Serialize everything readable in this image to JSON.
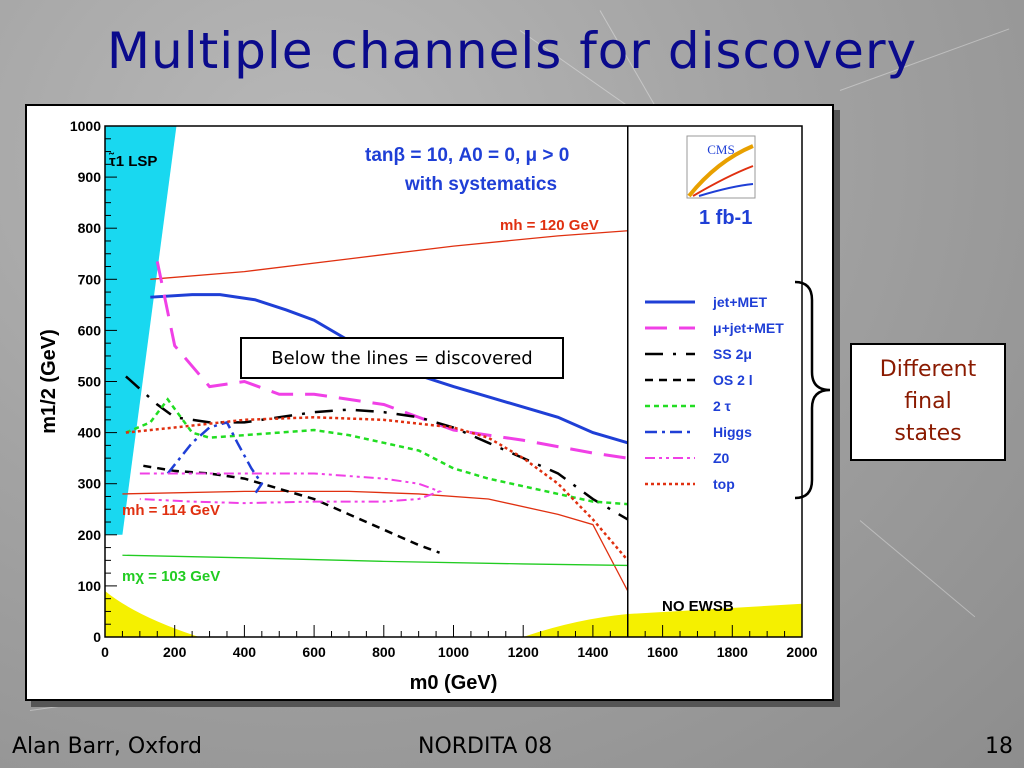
{
  "slide": {
    "title": "Multiple channels for discovery",
    "callout": "Below the lines = discovered",
    "states_box": [
      "Different",
      "final",
      "states"
    ],
    "footer_left": "Alan Barr, Oxford",
    "footer_center": "NORDITA 08",
    "footer_right": "18"
  },
  "chart_data": {
    "type": "line",
    "xlabel": "m0 (GeV)",
    "ylabel": "m1/2 (GeV)",
    "xlim": [
      0,
      2000
    ],
    "ylim": [
      0,
      1000
    ],
    "xticks": [
      "0",
      "200",
      "400",
      "600",
      "800",
      "1000",
      "1200",
      "1400",
      "1600",
      "1800",
      "2000"
    ],
    "yticks": [
      "0",
      "100",
      "200",
      "300",
      "400",
      "500",
      "600",
      "700",
      "800",
      "900",
      "1000"
    ],
    "annotations": {
      "params_line1": "tanβ = 10, A0 = 0, μ > 0",
      "params_line2": "with systematics",
      "lsp_label": "τ̃1 LSP",
      "mh120_label": "mh = 120 GeV",
      "mh114_label": "mh = 114 GeV",
      "mchi_label": "mχ = 103 GeV",
      "noewsb_label": "NO EWSB",
      "lumi_label": "1 fb-1",
      "cms_logo": "CMS"
    },
    "legend_position": "right",
    "series": [
      {
        "name": "jet+MET",
        "color": "#1f3fd6",
        "dash": "solid",
        "width": 3,
        "x": [
          130,
          250,
          330,
          430,
          520,
          600,
          700,
          760,
          820,
          1000,
          1100,
          1300,
          1400,
          1500
        ],
        "y": [
          665,
          670,
          670,
          660,
          640,
          620,
          580,
          555,
          530,
          490,
          470,
          430,
          400,
          380
        ]
      },
      {
        "name": "μ+jet+MET",
        "color": "#f040e6",
        "dash": "22 12",
        "width": 3,
        "x": [
          150,
          200,
          300,
          400,
          500,
          600,
          700,
          800,
          900,
          1000,
          1200,
          1400,
          1500
        ],
        "y": [
          735,
          570,
          490,
          500,
          475,
          475,
          465,
          455,
          430,
          405,
          385,
          360,
          350
        ]
      },
      {
        "name": "SS 2μ",
        "color": "#000000",
        "dash": "18 10 3 10",
        "width": 2.5,
        "x": [
          60,
          150,
          200,
          300,
          400,
          500,
          600,
          700,
          800,
          900,
          1000,
          1100,
          1200,
          1300,
          1400,
          1500
        ],
        "y": [
          510,
          455,
          430,
          420,
          420,
          430,
          440,
          445,
          440,
          430,
          410,
          380,
          350,
          320,
          270,
          230
        ]
      },
      {
        "name": "OS 2 l",
        "color": "#000000",
        "dash": "8 6",
        "width": 2.5,
        "x": [
          110,
          200,
          300,
          400,
          500,
          600,
          700,
          800,
          900,
          960
        ],
        "y": [
          335,
          325,
          320,
          310,
          290,
          270,
          240,
          210,
          180,
          165
        ]
      },
      {
        "name": "2 τ",
        "color": "#22dd22",
        "dash": "5 4",
        "width": 2.5,
        "x": [
          60,
          130,
          180,
          250,
          300,
          400,
          500,
          600,
          700,
          800,
          900,
          1000,
          1100,
          1200,
          1300,
          1400,
          1500
        ],
        "y": [
          400,
          420,
          465,
          400,
          390,
          395,
          400,
          405,
          395,
          380,
          365,
          330,
          310,
          295,
          280,
          265,
          260
        ]
      },
      {
        "name": "Higgs",
        "color": "#1f3fd6",
        "dash": "12 5 3 5",
        "width": 2.5,
        "x": [
          180,
          250,
          300,
          350,
          380,
          420,
          450,
          430
        ],
        "y": [
          320,
          380,
          410,
          420,
          380,
          330,
          300,
          280
        ]
      },
      {
        "name": "Z0",
        "color": "#f040e6",
        "dash": "10 4 3 4 3 4",
        "width": 2,
        "x": [
          100,
          250,
          400,
          600,
          700,
          800,
          900,
          960,
          900,
          800,
          600,
          400,
          250,
          100
        ],
        "y": [
          320,
          320,
          320,
          320,
          315,
          310,
          300,
          285,
          270,
          265,
          265,
          262,
          265,
          270
        ]
      },
      {
        "name": "top",
        "color": "#e03010",
        "dash": "3 3",
        "width": 2.5,
        "x": [
          60,
          200,
          400,
          600,
          800,
          1000,
          1100,
          1200,
          1300,
          1400,
          1500
        ],
        "y": [
          400,
          410,
          425,
          430,
          425,
          410,
          390,
          350,
          300,
          230,
          150
        ]
      }
    ],
    "reference_curves": [
      {
        "label": "mh = 120 GeV",
        "color": "#e03010",
        "x": [
          130,
          400,
          700,
          1000,
          1300,
          1500
        ],
        "y": [
          700,
          715,
          740,
          765,
          785,
          795
        ]
      },
      {
        "label": "mh = 114 GeV",
        "color": "#e03010",
        "x": [
          50,
          400,
          700,
          900,
          1100,
          1300,
          1400,
          1500
        ],
        "y": [
          280,
          285,
          285,
          280,
          270,
          240,
          220,
          90
        ]
      },
      {
        "label": "mχ = 103 GeV",
        "color": "#22cc22",
        "x": [
          50,
          400,
          800,
          1200,
          1500
        ],
        "y": [
          160,
          155,
          148,
          143,
          140
        ]
      }
    ]
  }
}
